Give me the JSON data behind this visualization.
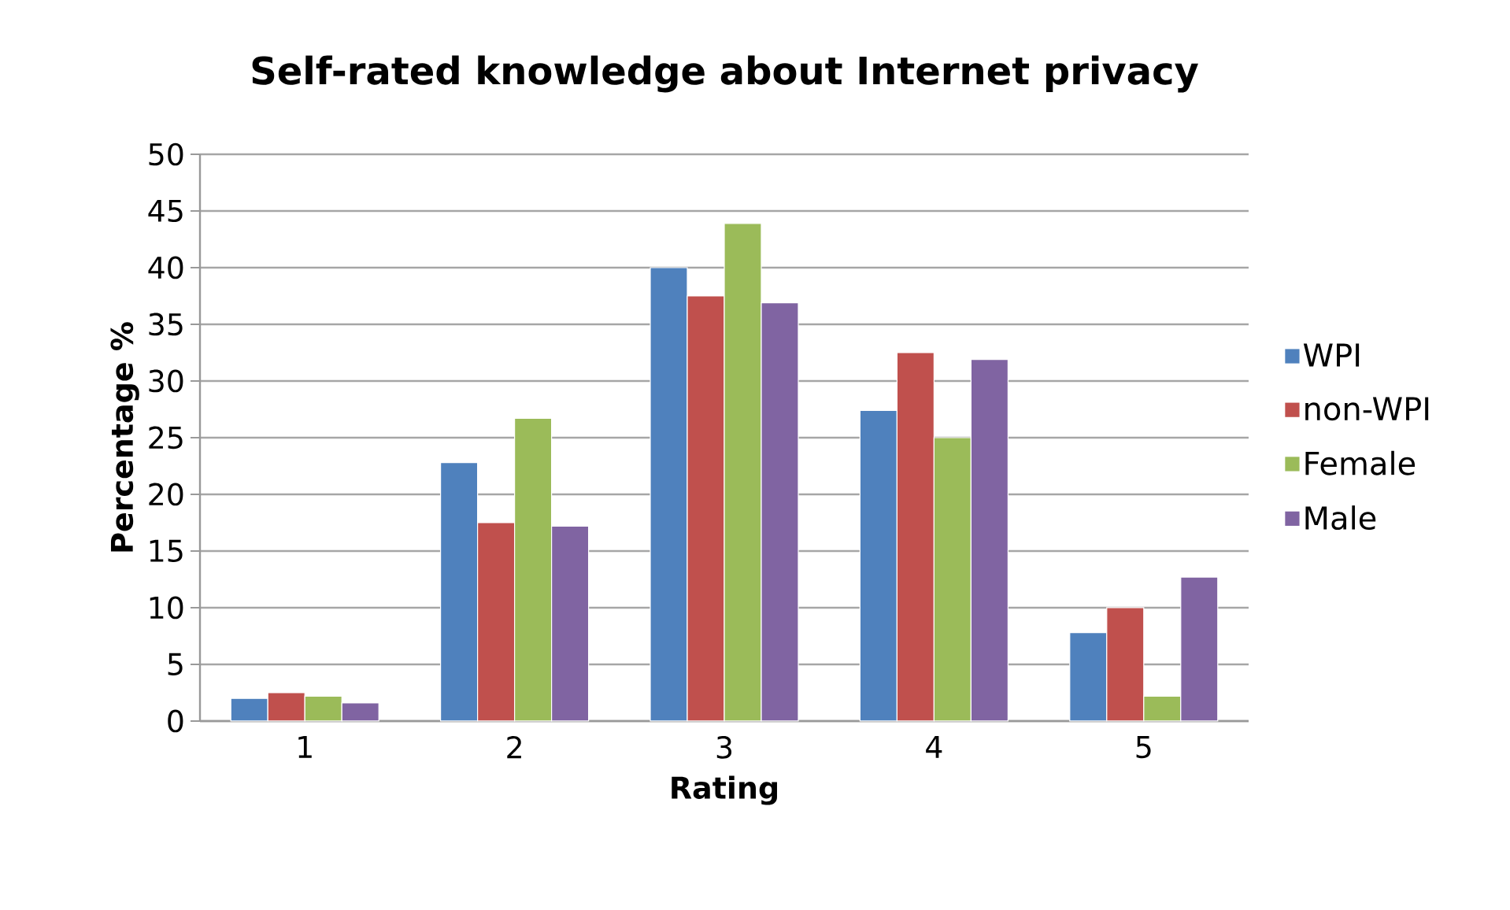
{
  "chart_data": {
    "type": "bar",
    "title": "Self-rated knowledge about Internet privacy",
    "xlabel": "Rating",
    "ylabel": "Percentage %",
    "categories": [
      "1",
      "2",
      "3",
      "4",
      "5"
    ],
    "series": [
      {
        "name": "WPI",
        "color": "#4f81bd",
        "values": [
          2.0,
          22.8,
          40.0,
          27.4,
          7.8
        ]
      },
      {
        "name": "non-WPI",
        "color": "#c0504d",
        "values": [
          2.5,
          17.5,
          37.5,
          32.5,
          10.0
        ]
      },
      {
        "name": "Female",
        "color": "#9bbb59",
        "values": [
          2.2,
          26.7,
          43.9,
          25.0,
          2.2
        ]
      },
      {
        "name": "Male",
        "color": "#8064a2",
        "values": [
          1.6,
          17.2,
          36.9,
          31.9,
          12.7
        ]
      }
    ],
    "ylim": [
      0,
      50
    ],
    "yticks": [
      0,
      5,
      10,
      15,
      20,
      25,
      30,
      35,
      40,
      45,
      50
    ],
    "grid": "y",
    "legend": "right"
  }
}
